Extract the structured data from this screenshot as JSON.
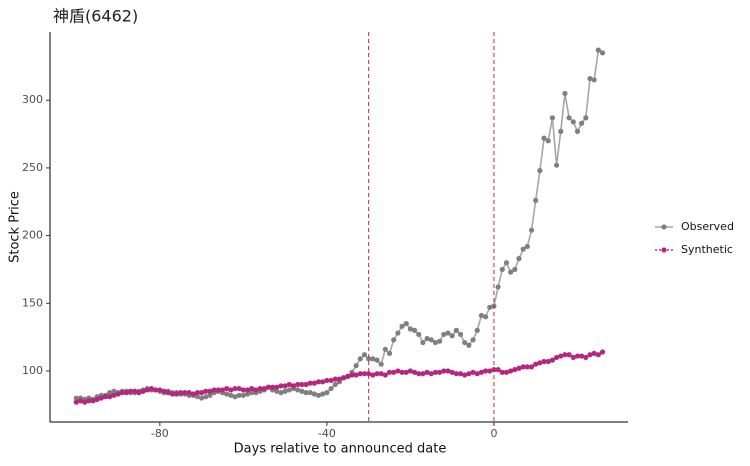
{
  "chart_data": {
    "type": "line",
    "title": "神盾(6462)",
    "x_label": "Days relative to announced date",
    "y_label": "Stock Price",
    "xlim": [
      -106.3,
      32.1
    ],
    "ylim": [
      62.3,
      350.4
    ],
    "xticks": [
      -80,
      -40,
      0
    ],
    "yticks": [
      100,
      150,
      200,
      250,
      300
    ],
    "grid": false,
    "legend": "right",
    "vlines": [
      -30,
      0
    ],
    "vline_color": "#c8283c",
    "x": [
      -100,
      -99,
      -98,
      -97,
      -96,
      -95,
      -94,
      -93,
      -92,
      -91,
      -90,
      -89,
      -88,
      -87,
      -86,
      -85,
      -84,
      -83,
      -82,
      -81,
      -80,
      -79,
      -78,
      -77,
      -76,
      -75,
      -74,
      -73,
      -72,
      -71,
      -70,
      -69,
      -68,
      -67,
      -66,
      -65,
      -64,
      -63,
      -62,
      -61,
      -60,
      -59,
      -58,
      -57,
      -56,
      -55,
      -54,
      -53,
      -52,
      -51,
      -50,
      -49,
      -48,
      -47,
      -46,
      -45,
      -44,
      -43,
      -42,
      -41,
      -40,
      -39,
      -38,
      -37,
      -36,
      -35,
      -34,
      -33,
      -32,
      -31,
      -30,
      -29,
      -28,
      -27,
      -26,
      -25,
      -24,
      -23,
      -22,
      -21,
      -20,
      -19,
      -18,
      -17,
      -16,
      -15,
      -14,
      -13,
      -12,
      -11,
      -10,
      -9,
      -8,
      -7,
      -6,
      -5,
      -4,
      -3,
      -2,
      -1,
      0,
      1,
      2,
      3,
      4,
      5,
      6,
      7,
      8,
      9,
      10,
      11,
      12,
      13,
      14,
      15,
      16,
      17,
      18,
      19,
      20,
      21,
      22,
      23,
      24,
      25,
      26
    ],
    "series": [
      {
        "name": "Observed",
        "color": "#7f7f7f",
        "line_color": "#a6a6a6",
        "dash": false,
        "values": [
          80,
          80,
          79,
          80,
          79,
          81,
          82,
          82,
          84,
          85,
          84,
          85,
          85,
          84,
          84,
          85,
          86,
          87,
          86,
          86,
          85,
          84,
          85,
          84,
          84,
          83,
          83,
          82,
          82,
          81,
          80,
          81,
          82,
          84,
          85,
          84,
          83,
          82,
          81,
          82,
          82,
          83,
          84,
          84,
          85,
          86,
          88,
          86,
          85,
          84,
          85,
          86,
          87,
          86,
          85,
          84,
          84,
          83,
          82,
          83,
          84,
          87,
          90,
          92,
          95,
          96,
          99,
          104,
          109,
          112,
          109,
          109,
          108,
          105,
          116,
          113,
          123,
          128,
          133,
          135,
          131,
          130,
          127,
          121,
          124,
          123,
          121,
          122,
          127,
          128,
          126,
          130,
          127,
          121,
          119,
          123,
          130,
          141,
          140,
          147,
          148,
          162,
          175,
          180,
          173,
          175,
          183,
          190,
          192,
          204,
          226,
          248,
          272,
          270,
          287,
          252,
          277,
          305,
          287,
          284,
          277,
          283,
          287,
          316,
          315,
          337,
          335
        ]
      },
      {
        "name": "Synthetic",
        "color": "#b5267e",
        "line_color": "#b5267e",
        "dash": true,
        "values": [
          77,
          78,
          77,
          78,
          78,
          79,
          80,
          81,
          81,
          82,
          83,
          84,
          84,
          85,
          85,
          84,
          85,
          86,
          87,
          86,
          86,
          85,
          84,
          83,
          83,
          84,
          84,
          84,
          83,
          84,
          84,
          85,
          85,
          86,
          86,
          86,
          87,
          86,
          87,
          87,
          86,
          86,
          87,
          86,
          87,
          87,
          88,
          88,
          88,
          89,
          89,
          90,
          89,
          90,
          90,
          90,
          91,
          91,
          92,
          92,
          93,
          93,
          94,
          94,
          95,
          96,
          97,
          97,
          98,
          98,
          98,
          97,
          98,
          98,
          97,
          99,
          99,
          100,
          99,
          99,
          100,
          99,
          98,
          98,
          99,
          98,
          99,
          99,
          100,
          100,
          99,
          98,
          98,
          97,
          98,
          99,
          98,
          99,
          100,
          100,
          101,
          101,
          99,
          99,
          100,
          101,
          102,
          103,
          103,
          103,
          105,
          106,
          107,
          107,
          108,
          110,
          111,
          112,
          112,
          110,
          111,
          111,
          110,
          112,
          113,
          112,
          114
        ]
      }
    ]
  }
}
